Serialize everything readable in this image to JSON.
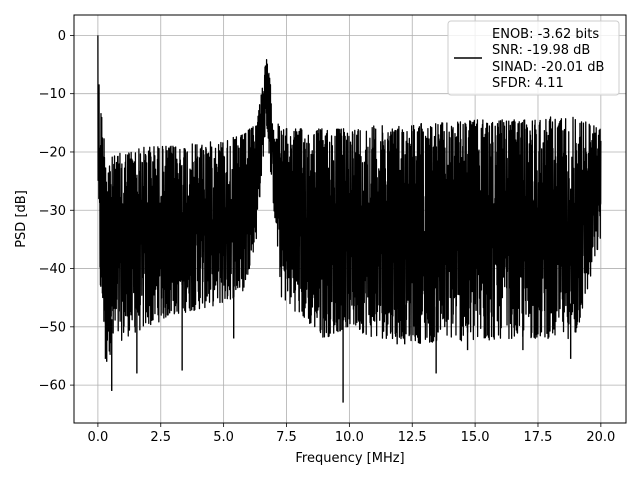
{
  "chart_data": {
    "type": "line",
    "title": "",
    "xlabel": "Frequency [MHz]",
    "ylabel": "PSD [dB]",
    "xlim": [
      -0.95,
      21.0
    ],
    "ylim": [
      -66.5,
      3.5
    ],
    "grid": true,
    "x_ticks": [
      0.0,
      2.5,
      5.0,
      7.5,
      10.0,
      12.5,
      15.0,
      17.5,
      20.0
    ],
    "x_tick_labels": [
      "0.0",
      "2.5",
      "5.0",
      "7.5",
      "10.0",
      "12.5",
      "15.0",
      "17.5",
      "20.0"
    ],
    "y_ticks": [
      0,
      -10,
      -20,
      -30,
      -40,
      -50,
      -60
    ],
    "y_tick_labels": [
      "0",
      "−10",
      "−20",
      "−30",
      "−40",
      "−50",
      "−60"
    ],
    "legend_position": "top-right",
    "legend_entries": [
      "ENOB: -3.62 bits",
      "SNR: -19.98 dB",
      "SINAD: -20.01 dB",
      "SFDR: 4.11"
    ],
    "series": [
      {
        "color": "#000000",
        "envelope_x": [
          0.0,
          0.05,
          0.2,
          0.5,
          1.0,
          2.0,
          3.0,
          4.0,
          5.0,
          5.8,
          6.3,
          6.55,
          6.7,
          6.8,
          7.0,
          7.3,
          8.0,
          9.0,
          10.0,
          11.0,
          12.0,
          13.0,
          14.0,
          15.0,
          16.0,
          17.0,
          18.0,
          19.0,
          20.0
        ],
        "envelope_upper": [
          0.0,
          -8.0,
          -16.0,
          -21.0,
          -20.0,
          -19.0,
          -19.0,
          -18.5,
          -18.0,
          -17.0,
          -15.0,
          -8.0,
          -4.0,
          -6.0,
          -14.0,
          -16.0,
          -16.0,
          -16.0,
          -16.0,
          -15.5,
          -15.5,
          -15.0,
          -15.0,
          -14.5,
          -14.5,
          -14.5,
          -14.0,
          -14.0,
          -16.0
        ],
        "envelope_lower": [
          -25.0,
          -42.0,
          -50.0,
          -55.0,
          -52.0,
          -50.0,
          -48.0,
          -47.0,
          -46.0,
          -44.0,
          -35.0,
          -22.0,
          -15.0,
          -20.0,
          -30.0,
          -45.0,
          -48.0,
          -52.0,
          -50.0,
          -52.0,
          -52.0,
          -53.0,
          -52.0,
          -53.0,
          -52.0,
          -52.0,
          -52.0,
          -52.0,
          -35.0
        ],
        "deep_dips": [
          {
            "x": 0.35,
            "y": -56.0
          },
          {
            "x": 0.55,
            "y": -61.0
          },
          {
            "x": 0.3,
            "y": -55.5
          },
          {
            "x": 1.55,
            "y": -58.0
          },
          {
            "x": 3.35,
            "y": -57.5
          },
          {
            "x": 5.4,
            "y": -52.0
          },
          {
            "x": 9.75,
            "y": -63.0
          },
          {
            "x": 11.9,
            "y": -53.0
          },
          {
            "x": 12.2,
            "y": -53.0
          },
          {
            "x": 13.45,
            "y": -58.0
          },
          {
            "x": 14.7,
            "y": -54.0
          },
          {
            "x": 16.9,
            "y": -54.0
          },
          {
            "x": 18.8,
            "y": -55.5
          }
        ]
      }
    ]
  }
}
